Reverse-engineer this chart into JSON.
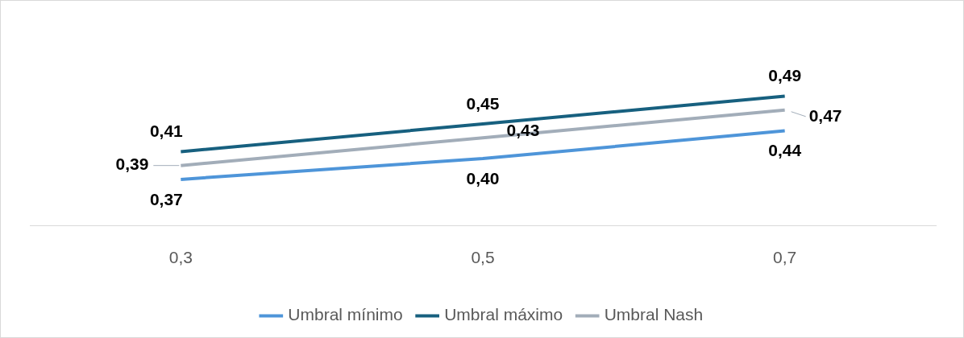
{
  "chart_data": {
    "type": "line",
    "categories": [
      "0,3",
      "0,5",
      "0,7"
    ],
    "series": [
      {
        "name": "Umbral mínimo",
        "color": "#4e95d9",
        "values": [
          0.37,
          0.4,
          0.44
        ],
        "value_labels": [
          "0,37",
          "0,40",
          "0,44"
        ]
      },
      {
        "name": "Umbral máximo",
        "color": "#17607f",
        "values": [
          0.41,
          0.45,
          0.49
        ],
        "value_labels": [
          "0,41",
          "0,45",
          "0,49"
        ]
      },
      {
        "name": "Umbral Nash",
        "color": "#a2adb9",
        "values": [
          0.39,
          0.43,
          0.47
        ],
        "value_labels": [
          "0,39",
          "0,43",
          "0,47"
        ]
      }
    ],
    "legend": "bottom",
    "grid": false,
    "marker": "none",
    "line_style": "solid",
    "tick_labels": "x"
  }
}
